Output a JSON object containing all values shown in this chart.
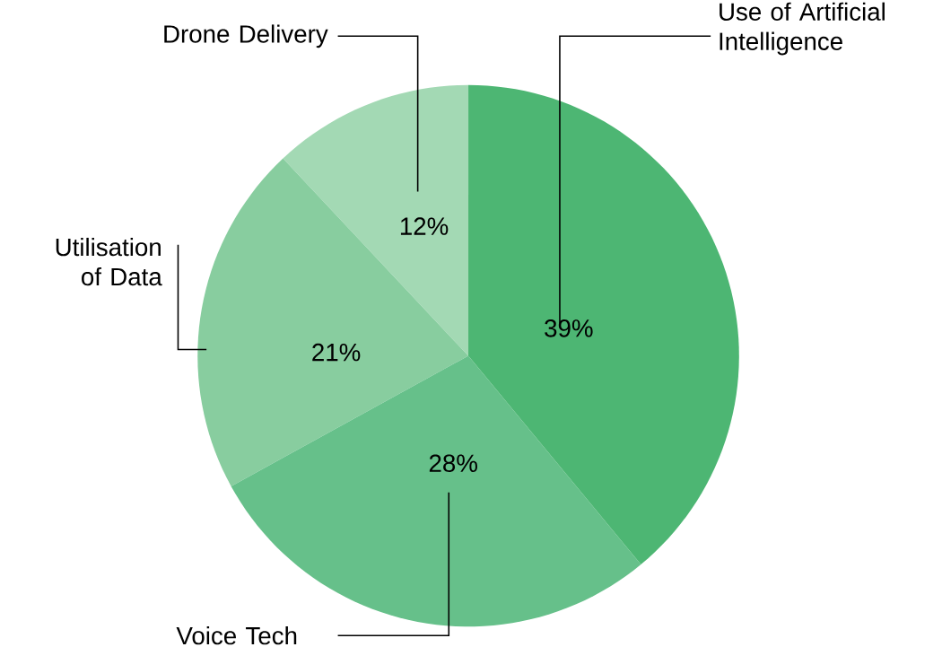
{
  "chart_data": {
    "type": "pie",
    "categories": [
      "Use of Artificial Intelligence",
      "Voice Tech",
      "Utilisation of Data",
      "Drone Delivery"
    ],
    "values": [
      39,
      28,
      21,
      12
    ],
    "colors": [
      "#4db673",
      "#66c08a",
      "#88cd9f",
      "#a3d9b4"
    ],
    "value_labels": [
      "39%",
      "28%",
      "21%",
      "12%"
    ]
  }
}
